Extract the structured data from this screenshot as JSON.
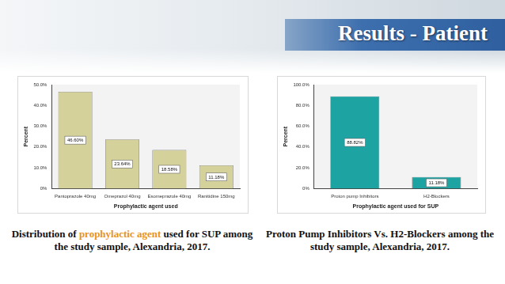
{
  "title": "Results - Patient",
  "chart_data": [
    {
      "type": "bar",
      "caption": "Distribution of prophylactic agent used for SUP among the study sample, Alexandria, 2017.",
      "caption_highlight": "prophylactic agent",
      "x_label": "Prophylactic agent used",
      "y_label": "Percent",
      "categories": [
        "Pantoprazole 40mg",
        "Omeprazol 40mg",
        "Esomeprazole 40mg",
        "Ranitidine 150mg"
      ],
      "values": [
        46.6,
        23.64,
        18.58,
        11.18
      ],
      "value_labels": [
        "46.60%",
        "23.64%",
        "18.58%",
        "11.18%"
      ],
      "data_labels": true,
      "color": "#d5d19a",
      "ylim": [
        0,
        50
      ],
      "yticks": [
        {
          "value": 0,
          "label": "0%"
        },
        {
          "value": 10,
          "label": "10.0%"
        },
        {
          "value": 20,
          "label": "20.0%"
        },
        {
          "value": 30,
          "label": "30.0%"
        },
        {
          "value": 40,
          "label": "40.0%"
        },
        {
          "value": 50,
          "label": "50.0%"
        }
      ],
      "grid": false
    },
    {
      "type": "bar",
      "caption": "Proton Pump Inhibitors Vs. H2-Blockers among the study sample, Alexandria, 2017.",
      "x_label": "Prophylactic agent used for SUP",
      "y_label": "Percent",
      "categories": [
        "Proton pump Inhibitors",
        "H2-Blockers"
      ],
      "values": [
        88.82,
        11.18
      ],
      "value_labels": [
        "88.82%",
        "11.18%"
      ],
      "data_labels": true,
      "color": "#1ea3a3",
      "ylim": [
        0,
        100
      ],
      "yticks": [
        {
          "value": 0,
          "label": "0%"
        },
        {
          "value": 20,
          "label": "20.0%"
        },
        {
          "value": 40,
          "label": "40.0%"
        },
        {
          "value": 60,
          "label": "60.0%"
        },
        {
          "value": 80,
          "label": "80.0%"
        },
        {
          "value": 100,
          "label": "100.0%"
        }
      ],
      "grid": false
    }
  ]
}
